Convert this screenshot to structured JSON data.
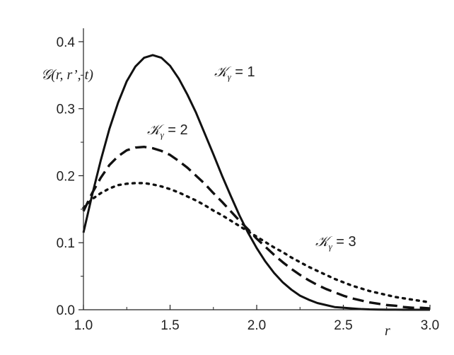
{
  "chart_data": {
    "type": "line",
    "xlabel": "r",
    "ylabel": "𝒢(r, r’, t)",
    "xlim": [
      1.0,
      3.0
    ],
    "ylim": [
      0.0,
      0.42
    ],
    "xticks": [
      "1.0",
      "1.5",
      "2.0",
      "2.5",
      "3.0"
    ],
    "yticks": [
      "0.0",
      "0.1",
      "0.2",
      "0.3",
      "0.4"
    ],
    "grid": false,
    "series": [
      {
        "name": "𝒦γ = 1",
        "style": "solid",
        "x": [
          1.0,
          1.05,
          1.1,
          1.15,
          1.2,
          1.25,
          1.3,
          1.35,
          1.4,
          1.45,
          1.5,
          1.55,
          1.6,
          1.65,
          1.7,
          1.75,
          1.8,
          1.85,
          1.9,
          1.95,
          2.0,
          2.05,
          2.1,
          2.15,
          2.2,
          2.25,
          2.3,
          2.35,
          2.4,
          2.45,
          2.5,
          2.55,
          2.6,
          2.65,
          2.7,
          2.75,
          2.8,
          2.85,
          2.9,
          2.95,
          3.0
        ],
        "y": [
          0.115,
          0.171,
          0.223,
          0.27,
          0.309,
          0.341,
          0.363,
          0.376,
          0.38,
          0.376,
          0.364,
          0.345,
          0.321,
          0.294,
          0.263,
          0.232,
          0.2,
          0.17,
          0.141,
          0.115,
          0.092,
          0.072,
          0.055,
          0.041,
          0.03,
          0.021,
          0.015,
          0.01,
          0.007,
          0.004,
          0.003,
          0.002,
          0.001,
          0.0005,
          0.0003,
          0.0001,
          0.0001,
          0.0,
          0.0,
          0.0,
          0.0
        ]
      },
      {
        "name": "𝒦γ = 2",
        "style": "dashed",
        "x": [
          1.0,
          1.05,
          1.1,
          1.15,
          1.2,
          1.25,
          1.3,
          1.35,
          1.4,
          1.45,
          1.5,
          1.55,
          1.6,
          1.65,
          1.7,
          1.75,
          1.8,
          1.85,
          1.9,
          1.95,
          2.0,
          2.05,
          2.1,
          2.15,
          2.2,
          2.25,
          2.3,
          2.35,
          2.4,
          2.45,
          2.5,
          2.55,
          2.6,
          2.65,
          2.7,
          2.75,
          2.8,
          2.85,
          2.9,
          2.95,
          3.0
        ],
        "y": [
          0.147,
          0.174,
          0.197,
          0.216,
          0.229,
          0.238,
          0.242,
          0.243,
          0.241,
          0.237,
          0.231,
          0.222,
          0.212,
          0.2,
          0.188,
          0.174,
          0.161,
          0.147,
          0.133,
          0.12,
          0.106,
          0.094,
          0.082,
          0.071,
          0.061,
          0.052,
          0.044,
          0.037,
          0.031,
          0.026,
          0.021,
          0.017,
          0.014,
          0.011,
          0.009,
          0.007,
          0.006,
          0.004,
          0.003,
          0.003,
          0.002
        ]
      },
      {
        "name": "𝒦γ = 3",
        "style": "dotted",
        "x": [
          1.0,
          1.05,
          1.1,
          1.15,
          1.2,
          1.25,
          1.3,
          1.35,
          1.4,
          1.45,
          1.5,
          1.55,
          1.6,
          1.65,
          1.7,
          1.75,
          1.8,
          1.85,
          1.9,
          1.95,
          2.0,
          2.05,
          2.1,
          2.15,
          2.2,
          2.25,
          2.3,
          2.35,
          2.4,
          2.45,
          2.5,
          2.55,
          2.6,
          2.65,
          2.7,
          2.75,
          2.8,
          2.85,
          2.9,
          2.95,
          3.0
        ],
        "y": [
          0.152,
          0.165,
          0.174,
          0.181,
          0.186,
          0.188,
          0.189,
          0.189,
          0.187,
          0.184,
          0.18,
          0.175,
          0.169,
          0.163,
          0.156,
          0.148,
          0.141,
          0.133,
          0.125,
          0.117,
          0.109,
          0.101,
          0.093,
          0.086,
          0.078,
          0.071,
          0.064,
          0.058,
          0.052,
          0.046,
          0.041,
          0.036,
          0.032,
          0.028,
          0.025,
          0.022,
          0.019,
          0.017,
          0.015,
          0.013,
          0.011
        ]
      }
    ],
    "annotations": [
      {
        "symbol": "𝒦",
        "sub": "γ",
        "rest": " = 1",
        "series": 0
      },
      {
        "symbol": "𝒦",
        "sub": "γ",
        "rest": " = 2",
        "series": 1
      },
      {
        "symbol": "𝒦",
        "sub": "γ",
        "rest": " = 3",
        "series": 2
      }
    ]
  }
}
